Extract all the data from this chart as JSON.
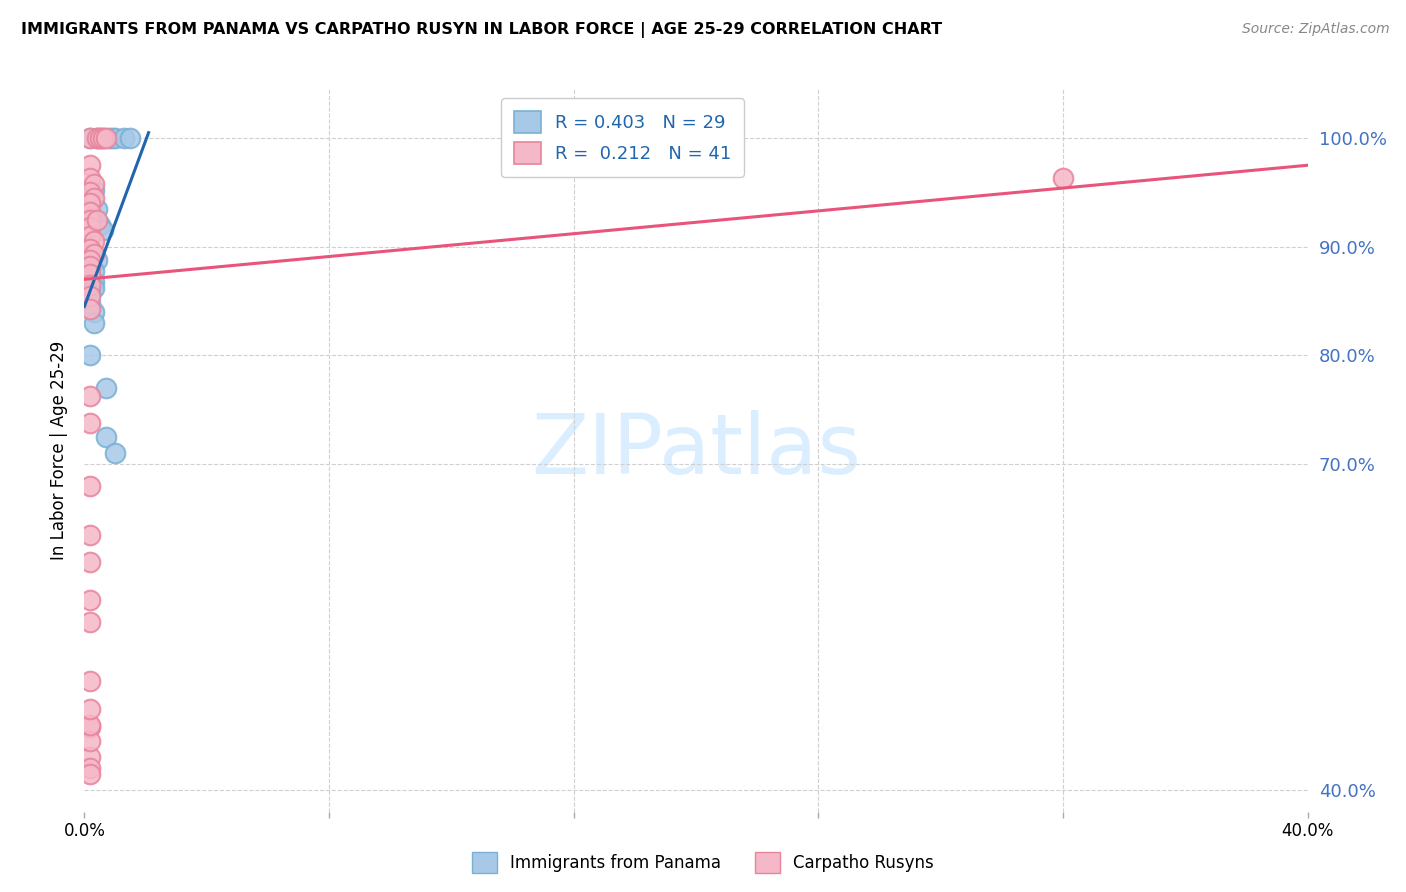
{
  "title": "IMMIGRANTS FROM PANAMA VS CARPATHO RUSYN IN LABOR FORCE | AGE 25-29 CORRELATION CHART",
  "source": "Source: ZipAtlas.com",
  "ylabel": "In Labor Force | Age 25-29",
  "ytick_values": [
    0.4,
    0.7,
    0.8,
    0.9,
    1.0
  ],
  "ytick_labels": [
    "40.0%",
    "70.0%",
    "80.0%",
    "90.0%",
    "100.0%"
  ],
  "xtick_values": [
    0.0,
    0.08,
    0.16,
    0.24,
    0.32,
    0.4
  ],
  "xtick_labels": [
    "0.0%",
    "",
    "",
    "",
    "",
    "40.0%"
  ],
  "xlim": [
    0.0,
    0.4
  ],
  "ylim": [
    0.38,
    1.045
  ],
  "legend_r_blue": "0.403",
  "legend_n_blue": "29",
  "legend_r_pink": "0.212",
  "legend_n_pink": "41",
  "legend_label_blue": "Immigrants from Panama",
  "legend_label_pink": "Carpatho Rusyns",
  "blue_scatter": [
    [
      0.002,
      1.0
    ],
    [
      0.004,
      1.0
    ],
    [
      0.005,
      1.0
    ],
    [
      0.006,
      1.0
    ],
    [
      0.008,
      1.0
    ],
    [
      0.009,
      1.0
    ],
    [
      0.01,
      1.0
    ],
    [
      0.013,
      1.0
    ],
    [
      0.015,
      1.0
    ],
    [
      0.003,
      0.952
    ],
    [
      0.004,
      0.935
    ],
    [
      0.005,
      0.92
    ],
    [
      0.006,
      0.915
    ],
    [
      0.002,
      0.898
    ],
    [
      0.003,
      0.893
    ],
    [
      0.004,
      0.888
    ],
    [
      0.002,
      0.882
    ],
    [
      0.003,
      0.878
    ],
    [
      0.002,
      0.873
    ],
    [
      0.003,
      0.868
    ],
    [
      0.003,
      0.862
    ],
    [
      0.002,
      0.857
    ],
    [
      0.002,
      0.848
    ],
    [
      0.003,
      0.84
    ],
    [
      0.003,
      0.83
    ],
    [
      0.002,
      0.8
    ],
    [
      0.007,
      0.77
    ],
    [
      0.007,
      0.725
    ],
    [
      0.01,
      0.71
    ]
  ],
  "pink_scatter": [
    [
      0.002,
      1.0
    ],
    [
      0.004,
      1.0
    ],
    [
      0.005,
      1.0
    ],
    [
      0.006,
      1.0
    ],
    [
      0.007,
      1.0
    ],
    [
      0.002,
      0.975
    ],
    [
      0.002,
      0.963
    ],
    [
      0.003,
      0.958
    ],
    [
      0.002,
      0.95
    ],
    [
      0.003,
      0.945
    ],
    [
      0.002,
      0.94
    ],
    [
      0.002,
      0.932
    ],
    [
      0.002,
      0.925
    ],
    [
      0.002,
      0.918
    ],
    [
      0.002,
      0.91
    ],
    [
      0.003,
      0.905
    ],
    [
      0.002,
      0.898
    ],
    [
      0.003,
      0.893
    ],
    [
      0.002,
      0.888
    ],
    [
      0.002,
      0.882
    ],
    [
      0.004,
      0.925
    ],
    [
      0.002,
      0.875
    ],
    [
      0.002,
      0.865
    ],
    [
      0.002,
      0.855
    ],
    [
      0.002,
      0.843
    ],
    [
      0.002,
      0.763
    ],
    [
      0.002,
      0.738
    ],
    [
      0.002,
      0.68
    ],
    [
      0.002,
      0.635
    ],
    [
      0.002,
      0.61
    ],
    [
      0.002,
      0.575
    ],
    [
      0.002,
      0.555
    ],
    [
      0.002,
      0.5
    ],
    [
      0.002,
      0.458
    ],
    [
      0.002,
      0.43
    ],
    [
      0.002,
      0.42
    ],
    [
      0.002,
      0.415
    ],
    [
      0.32,
      0.963
    ],
    [
      0.002,
      0.445
    ],
    [
      0.002,
      0.46
    ],
    [
      0.002,
      0.475
    ]
  ],
  "blue_line_x": [
    0.0,
    0.021
  ],
  "blue_line_y": [
    0.845,
    1.005
  ],
  "pink_line_x": [
    0.0,
    0.4
  ],
  "pink_line_y": [
    0.87,
    0.975
  ],
  "blue_dot_color": "#a8c8e8",
  "blue_edge_color": "#7ab0d4",
  "pink_dot_color": "#f5b8c8",
  "pink_edge_color": "#e8849a",
  "blue_line_color": "#2166ac",
  "pink_line_color": "#e8547a",
  "grid_color": "#d0d0d0",
  "ytick_color": "#4472c4",
  "watermark_text": "ZIPatlas",
  "watermark_color": "#daeeff"
}
